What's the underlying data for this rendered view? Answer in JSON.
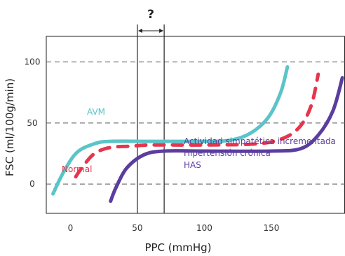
{
  "chart_data": {
    "type": "line",
    "xlabel": "PPC (mmHg)",
    "ylabel": "FSC (ml/100g/min)",
    "x_ticks": [
      "0",
      "50",
      "100",
      "150"
    ],
    "y_ticks": [
      "0",
      "50",
      "100"
    ],
    "xlim": [
      -18,
      205
    ],
    "ylim": [
      -24,
      121
    ],
    "grid": "horizontal dashed at y ticks",
    "marker": {
      "label": "?",
      "x_range": [
        50,
        70
      ]
    },
    "series": [
      {
        "name": "AVM",
        "color": "#5bc4c9",
        "style": "solid",
        "x": [
          -13,
          -5,
          5,
          18,
          30,
          60,
          100,
          120,
          135,
          148,
          157,
          162
        ],
        "y": [
          -8,
          10,
          26,
          33,
          35,
          35,
          35,
          36,
          42,
          55,
          75,
          96
        ]
      },
      {
        "name": "Normal",
        "color": "#e5364f",
        "style": "dashed",
        "x": [
          4,
          9,
          18,
          30,
          45,
          60,
          100,
          140,
          160,
          172,
          180,
          185
        ],
        "y": [
          6,
          14,
          25,
          30,
          31,
          32,
          32,
          33,
          38,
          48,
          65,
          90
        ]
      },
      {
        "name": "Actividad simpatética incrementada\nHipertensión crónica\nHAS",
        "lines": [
          "Actividad simpatética incrementada",
          "Hipertensión crónica",
          "HAS"
        ],
        "color": "#5b3da0",
        "style": "solid",
        "x": [
          30,
          34,
          42,
          55,
          70,
          100,
          150,
          172,
          185,
          196,
          203
        ],
        "y": [
          -14,
          -3,
          13,
          24,
          27,
          27,
          27,
          29,
          40,
          60,
          87
        ]
      }
    ]
  }
}
